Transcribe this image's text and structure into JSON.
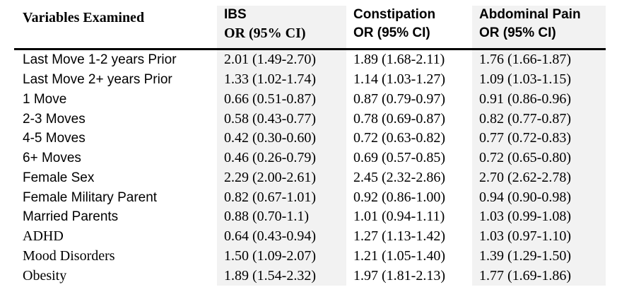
{
  "table": {
    "header": [
      [
        "Variables Examined"
      ],
      [
        "IBS",
        "OR (95% CI)"
      ],
      [
        "Constipation",
        "OR (95% CI)"
      ],
      [
        "Abdominal Pain",
        "OR (95% CI)"
      ]
    ],
    "rows": [
      [
        "Last Move 1-2 years Prior",
        "2.01 (1.49-2.70)",
        "1.89 (1.68-2.11)",
        "1.76 (1.66-1.87)"
      ],
      [
        "Last Move 2+ years Prior",
        "1.33 (1.02-1.74)",
        "1.14 (1.03-1.27)",
        "1.09 (1.03-1.15)"
      ],
      [
        "1 Move",
        "0.66 (0.51-0.87)",
        "0.87 (0.79-0.97)",
        "0.91 (0.86-0.96)"
      ],
      [
        "2-3 Moves",
        "0.58 (0.43-0.77)",
        "0.78 (0.69-0.87)",
        "0.82 (0.77-0.87)"
      ],
      [
        "4-5 Moves",
        "0.42 (0.30-0.60)",
        "0.72 (0.63-0.82)",
        "0.77 (0.72-0.83)"
      ],
      [
        "6+ Moves",
        "0.46 (0.26-0.79)",
        "0.69 (0.57-0.85)",
        "0.72 (0.65-0.80)"
      ],
      [
        "Female Sex",
        "2.29 (2.00-2.61)",
        "2.45 (2.32-2.86)",
        "2.70 (2.62-2.78)"
      ],
      [
        "Female Military Parent",
        "0.82 (0.67-1.01)",
        "0.92 (0.86-1.00)",
        "0.94 (0.90-0.98)"
      ],
      [
        "Married Parents",
        "0.88 (0.70-1.1)",
        "1.01 (0.94-1.11)",
        "1.03 (0.99-1.08)"
      ],
      [
        "ADHD",
        "0.64 (0.43-0.94)",
        "1.27 (1.13-1.42)",
        "1.03 (0.97-1.10)"
      ],
      [
        "Mood Disorders",
        "1.50 (1.09-2.07)",
        "1.21 (1.05-1.40)",
        "1.39 (1.29-1.50)"
      ],
      [
        "Obesity",
        "1.89 (1.54-2.32)",
        "1.97 (1.81-2.13)",
        "1.77 (1.69-1.86)"
      ]
    ]
  }
}
